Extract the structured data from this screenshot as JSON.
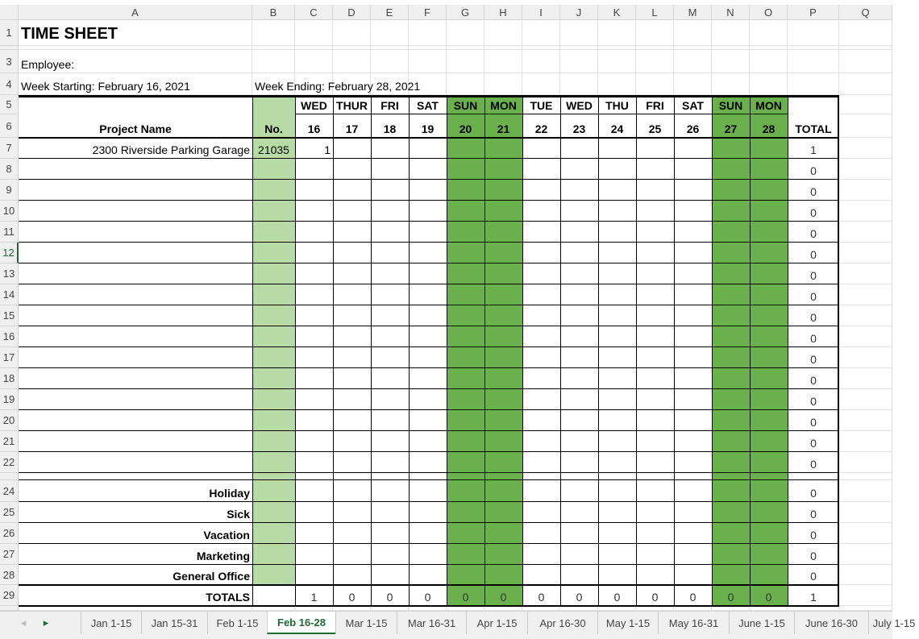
{
  "colors": {
    "light_green": "#b7dba5",
    "dark_green": "#6ab04c",
    "tab_active": "#1e6b35"
  },
  "columns": [
    "A",
    "B",
    "C",
    "D",
    "E",
    "F",
    "G",
    "H",
    "I",
    "J",
    "K",
    "L",
    "M",
    "N",
    "O",
    "P",
    "Q"
  ],
  "title": "TIME SHEET",
  "employee_label": "Employee:",
  "week_starting": "Week Starting: February 16, 2021",
  "week_ending": "Week Ending: February 28, 2021",
  "headers": {
    "project_name": "Project Name",
    "no": "No.",
    "total": "TOTAL",
    "days": [
      "WED",
      "THUR",
      "FRI",
      "SAT",
      "SUN",
      "MON",
      "TUE",
      "WED",
      "THU",
      "FRI",
      "SAT",
      "SUN",
      "MON"
    ],
    "dates": [
      "16",
      "17",
      "18",
      "19",
      "20",
      "21",
      "22",
      "23",
      "24",
      "25",
      "26",
      "27",
      "28"
    ]
  },
  "project_rows": [
    {
      "row": "7",
      "name": "2300 Riverside Parking Garage",
      "no": "21035",
      "hours": [
        "1",
        "",
        "",
        "",
        "",
        "",
        "",
        "",
        "",
        "",
        "",
        "",
        ""
      ],
      "total": "1"
    },
    {
      "row": "8",
      "total": "0"
    },
    {
      "row": "9",
      "total": "0"
    },
    {
      "row": "10",
      "total": "0"
    },
    {
      "row": "11",
      "total": "0"
    },
    {
      "row": "12",
      "total": "0"
    },
    {
      "row": "13",
      "total": "0"
    },
    {
      "row": "14",
      "total": "0"
    },
    {
      "row": "15",
      "total": "0"
    },
    {
      "row": "16",
      "total": "0"
    },
    {
      "row": "17",
      "total": "0"
    },
    {
      "row": "18",
      "total": "0"
    },
    {
      "row": "19",
      "total": "0"
    },
    {
      "row": "20",
      "total": "0"
    },
    {
      "row": "21",
      "total": "0"
    },
    {
      "row": "22",
      "total": "0"
    }
  ],
  "category_rows": [
    {
      "row": "24",
      "name": "Holiday",
      "total": "0"
    },
    {
      "row": "25",
      "name": "Sick",
      "total": "0"
    },
    {
      "row": "26",
      "name": "Vacation",
      "total": "0"
    },
    {
      "row": "27",
      "name": "Marketing",
      "total": "0"
    },
    {
      "row": "28",
      "name": "General Office",
      "total": "0"
    }
  ],
  "totals_row": {
    "row": "29",
    "label": "TOTALS",
    "values": [
      "1",
      "0",
      "0",
      "0",
      "0",
      "0",
      "0",
      "0",
      "0",
      "0",
      "0",
      "0",
      "0"
    ],
    "total": "1"
  },
  "sheet_tabs": [
    "Jan 1-15",
    "Jan 15-31",
    "Feb 1-15",
    "Feb 16-28",
    "Mar 1-15",
    "Mar 16-31",
    "Apr 1-15",
    "Apr 16-30",
    "May 1-15",
    "May 16-31",
    "June 1-15",
    "June 16-30",
    "July 1-15"
  ],
  "active_tab": "Feb 16-28",
  "nav": {
    "prev": "◂",
    "next": "▸"
  }
}
